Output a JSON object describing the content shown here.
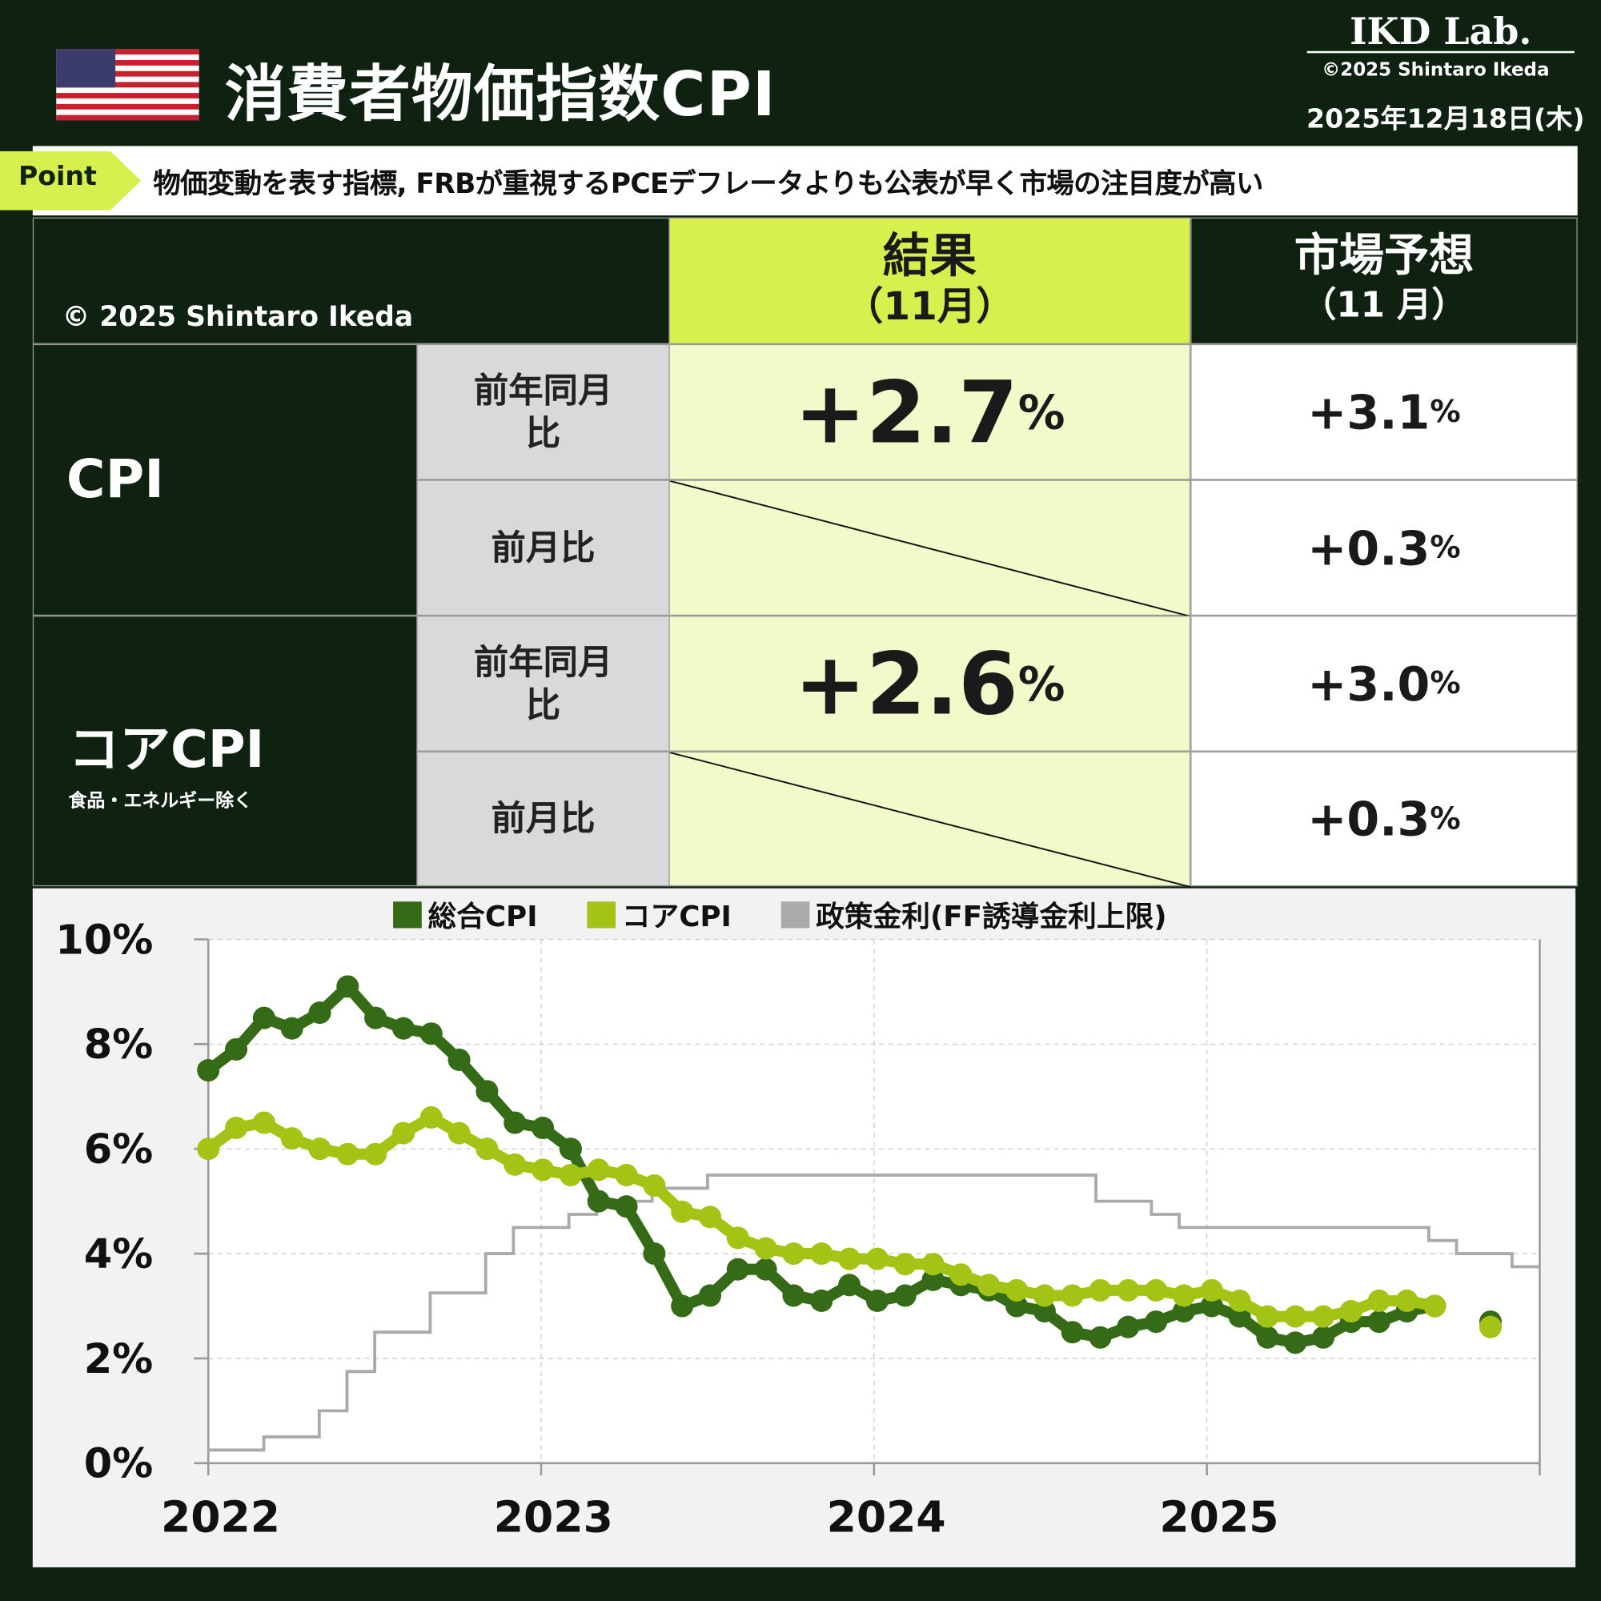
{
  "header": {
    "title": "消費者物価指数CPI",
    "logo": "IKD Lab.",
    "copyright": "©2025 Shintaro Ikeda",
    "date": "2025年12月18日(木)",
    "flag": "us-flag-icon"
  },
  "point": {
    "tag": "Point",
    "text": "物価変動を表す指標, FRBが重視するPCEデフレータよりも公表が早く市場の注目度が高い"
  },
  "table": {
    "watermark": "© 2025 Shintaro Ikeda",
    "result_header": "結果",
    "result_sub": "（11月）",
    "forecast_header": "市場予想",
    "forecast_sub": "（11 月）",
    "rows": [
      {
        "group": "CPI",
        "group_sub": "",
        "yoy_label": "前年同月比",
        "mom_label": "前月比",
        "yoy_result": "+2.7",
        "mom_result": "",
        "yoy_forecast": "+3.1",
        "mom_forecast": "+0.3"
      },
      {
        "group": "コアCPI",
        "group_sub": "食品・エネルギー除く",
        "yoy_label": "前年同月比",
        "mom_label": "前月比",
        "yoy_result": "+2.6",
        "mom_result": "",
        "yoy_forecast": "+3.0",
        "mom_forecast": "+0.3"
      }
    ],
    "unit": "%"
  },
  "colors": {
    "background": "#0f2211",
    "accent": "#d7f04d",
    "cpi": "#356b17",
    "core": "#a3c414",
    "ff": "#aaaaaa"
  },
  "chart_data": {
    "type": "line",
    "title": "",
    "x_start": "2022-01",
    "frequency": "monthly",
    "x_tick_labels": [
      "2022",
      "2023",
      "2024",
      "2025"
    ],
    "y_tick_labels": [
      "0%",
      "2%",
      "4%",
      "6%",
      "8%",
      "10%"
    ],
    "ylim": [
      0,
      10
    ],
    "grid": true,
    "legend": "top",
    "series": [
      {
        "name": "総合CPI",
        "color": "#356b17",
        "values": [
          7.5,
          7.9,
          8.5,
          8.3,
          8.6,
          9.1,
          8.5,
          8.3,
          8.2,
          7.7,
          7.1,
          6.5,
          6.4,
          6.0,
          5.0,
          4.9,
          4.0,
          3.0,
          3.2,
          3.7,
          3.7,
          3.2,
          3.1,
          3.4,
          3.1,
          3.2,
          3.5,
          3.4,
          3.3,
          3.0,
          2.9,
          2.5,
          2.4,
          2.6,
          2.7,
          2.9,
          3.0,
          2.8,
          2.4,
          2.3,
          2.4,
          2.7,
          2.7,
          2.9,
          3.0,
          null,
          2.7
        ]
      },
      {
        "name": "コアCPI",
        "color": "#a3c414",
        "values": [
          6.0,
          6.4,
          6.5,
          6.2,
          6.0,
          5.9,
          5.9,
          6.3,
          6.6,
          6.3,
          6.0,
          5.7,
          5.6,
          5.5,
          5.6,
          5.5,
          5.3,
          4.8,
          4.7,
          4.3,
          4.1,
          4.0,
          4.0,
          3.9,
          3.9,
          3.8,
          3.8,
          3.6,
          3.4,
          3.3,
          3.2,
          3.2,
          3.3,
          3.3,
          3.3,
          3.2,
          3.3,
          3.1,
          2.8,
          2.8,
          2.8,
          2.9,
          3.1,
          3.1,
          3.0,
          null,
          2.6
        ]
      },
      {
        "name": "政策金利(FF誘導金利上限)",
        "color": "#aaaaaa",
        "step": true,
        "values": [
          0.25,
          0.25,
          0.5,
          0.5,
          1.0,
          1.75,
          2.5,
          2.5,
          3.25,
          3.25,
          4.0,
          4.5,
          4.5,
          4.75,
          5.0,
          5.0,
          5.25,
          5.25,
          5.5,
          5.5,
          5.5,
          5.5,
          5.5,
          5.5,
          5.5,
          5.5,
          5.5,
          5.5,
          5.5,
          5.5,
          5.5,
          5.5,
          5.0,
          5.0,
          4.75,
          4.5,
          4.5,
          4.5,
          4.5,
          4.5,
          4.5,
          4.5,
          4.5,
          4.5,
          4.25,
          4.0,
          4.0,
          3.75
        ]
      }
    ]
  }
}
